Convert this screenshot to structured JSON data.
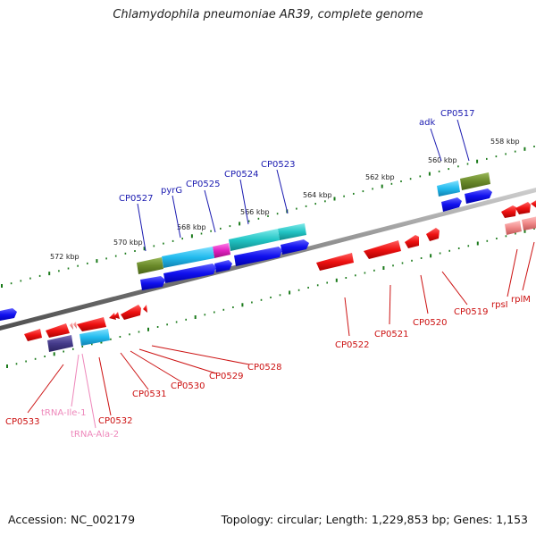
{
  "title": "Chlamydophila pneumoniae AR39, complete genome",
  "footer": {
    "accession": "Accession: NC_002179",
    "topology": "Topology: circular; Length: 1,229,853 bp; Genes: 1,153"
  },
  "colors": {
    "background": "#ffffff",
    "backbone": "#808080",
    "tick": "#1a7a1a",
    "label_forward": "#1a1ab0",
    "label_reverse": "#cc1111",
    "label_rna": "#ee88bb",
    "feature_forward": "#1010ee",
    "feature_reverse": "#ee1111",
    "feature_cyan": "#22bbee",
    "feature_olive": "#6a8a2a",
    "feature_teal": "#22c5c5",
    "feature_magenta": "#e020c0",
    "feature_navy": "#443a8a",
    "feature_pink": "#f08888"
  },
  "scale_labels": [
    "558 kbp",
    "560 kbp",
    "562 kbp",
    "564 kbp",
    "566 kbp",
    "568 kbp",
    "570 kbp",
    "572 kbp"
  ],
  "genes": {
    "forward": [
      "adk",
      "CP0517",
      "CP0523",
      "CP0524",
      "CP0525",
      "pyrG",
      "CP0527"
    ],
    "reverse": [
      "CP0519",
      "rpsI",
      "rplM",
      "CP0520",
      "CP0521",
      "CP0522",
      "CP0528",
      "CP0529",
      "CP0530",
      "CP0531",
      "CP0532",
      "CP0533"
    ],
    "rna": [
      "tRNA-Ile-1",
      "tRNA-Ala-2"
    ]
  }
}
